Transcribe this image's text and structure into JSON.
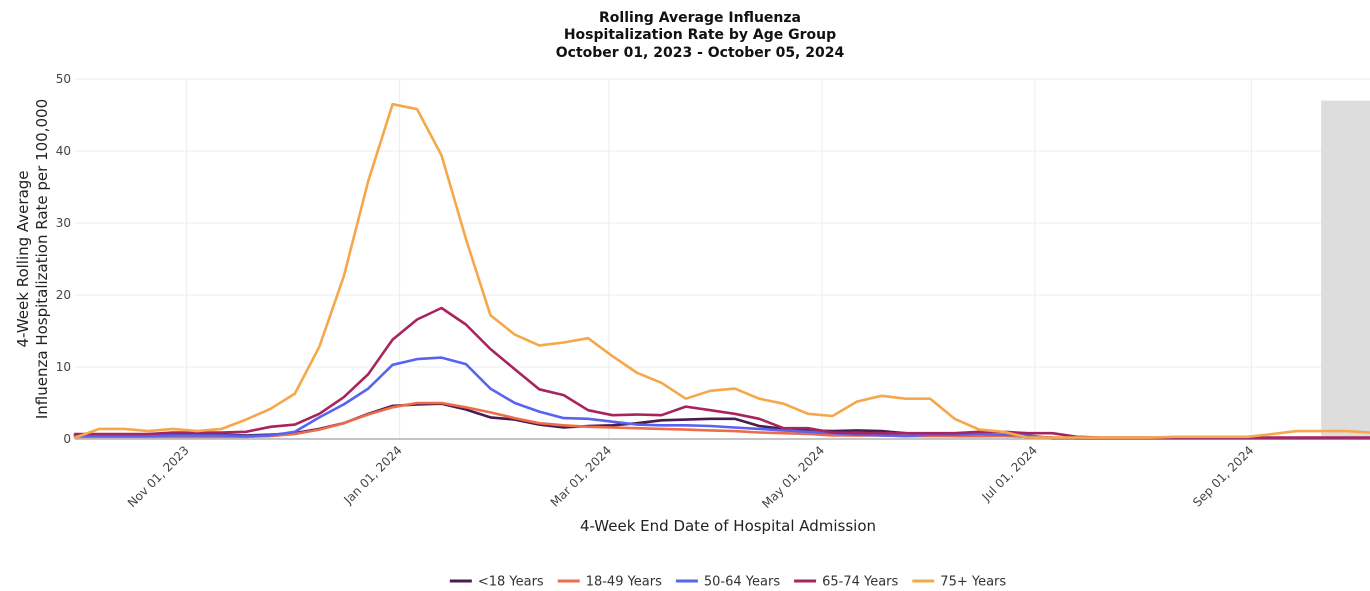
{
  "chart_data": {
    "type": "line",
    "title": [
      "Rolling Average Influenza",
      "Hospitalization Rate by Age Group",
      "October 01, 2023 - October 05, 2024"
    ],
    "xlabel": "4-Week End Date of Hospital Admission",
    "ylabel": [
      "4-Week Rolling Average",
      "Influenza Hospitalization Rate per 100,000"
    ],
    "xlim": [
      "2023-09-30",
      "2024-10-05"
    ],
    "ylim": [
      0,
      50
    ],
    "y_ticks": [
      0,
      10,
      20,
      30,
      40,
      50
    ],
    "x_ticks": [
      {
        "date": "2023-11-01",
        "label": "Nov 01, 2023"
      },
      {
        "date": "2024-01-01",
        "label": "Jan 01, 2024"
      },
      {
        "date": "2024-03-01",
        "label": "Mar 01, 2024"
      },
      {
        "date": "2024-05-01",
        "label": "May 01, 2024"
      },
      {
        "date": "2024-07-01",
        "label": "Jul 01, 2024"
      },
      {
        "date": "2024-09-01",
        "label": "Sep 01, 2024"
      }
    ],
    "grid": true,
    "legend_position": "bottom",
    "shaded_region": {
      "start": "2024-09-21",
      "end": "2024-10-05",
      "top": 47,
      "color": "#dddddd"
    },
    "series": [
      {
        "name": "<18 Years",
        "color": "#4b1d4f",
        "points": [
          [
            "2023-09-30",
            0.5
          ],
          [
            "2023-10-07",
            0.5
          ],
          [
            "2023-10-14",
            0.5
          ],
          [
            "2023-10-21",
            0.5
          ],
          [
            "2023-10-28",
            0.6
          ],
          [
            "2023-11-04",
            0.6
          ],
          [
            "2023-11-11",
            0.6
          ],
          [
            "2023-11-18",
            0.5
          ],
          [
            "2023-11-25",
            0.6
          ],
          [
            "2023-12-02",
            0.8
          ],
          [
            "2023-12-09",
            1.4
          ],
          [
            "2023-12-16",
            2.2
          ],
          [
            "2023-12-23",
            3.5
          ],
          [
            "2023-12-30",
            4.6
          ],
          [
            "2024-01-06",
            4.8
          ],
          [
            "2024-01-13",
            4.9
          ],
          [
            "2024-01-20",
            4.1
          ],
          [
            "2024-01-27",
            3.0
          ],
          [
            "2024-02-03",
            2.7
          ],
          [
            "2024-02-10",
            2.0
          ],
          [
            "2024-02-17",
            1.6
          ],
          [
            "2024-02-24",
            1.8
          ],
          [
            "2024-03-02",
            1.9
          ],
          [
            "2024-03-09",
            2.2
          ],
          [
            "2024-03-16",
            2.6
          ],
          [
            "2024-03-23",
            2.7
          ],
          [
            "2024-03-30",
            2.8
          ],
          [
            "2024-04-06",
            2.8
          ],
          [
            "2024-04-13",
            1.8
          ],
          [
            "2024-04-20",
            1.4
          ],
          [
            "2024-04-27",
            1.2
          ],
          [
            "2024-05-04",
            1.1
          ],
          [
            "2024-05-11",
            1.2
          ],
          [
            "2024-05-18",
            1.1
          ],
          [
            "2024-05-25",
            0.8
          ],
          [
            "2024-06-01",
            0.6
          ],
          [
            "2024-06-08",
            0.4
          ],
          [
            "2024-06-15",
            0.4
          ],
          [
            "2024-06-22",
            0.5
          ],
          [
            "2024-06-29",
            0.3
          ],
          [
            "2024-07-06",
            0.2
          ],
          [
            "2024-07-13",
            0.1
          ],
          [
            "2024-07-20",
            0.1
          ],
          [
            "2024-07-27",
            0.1
          ],
          [
            "2024-08-03",
            0.1
          ],
          [
            "2024-08-10",
            0.1
          ],
          [
            "2024-08-17",
            0.1
          ],
          [
            "2024-08-24",
            0.1
          ],
          [
            "2024-08-31",
            0.1
          ],
          [
            "2024-09-07",
            0.1
          ],
          [
            "2024-09-14",
            0.1
          ],
          [
            "2024-09-21",
            0.1
          ],
          [
            "2024-09-28",
            0.1
          ],
          [
            "2024-10-05",
            0.1
          ]
        ]
      },
      {
        "name": "18-49 Years",
        "color": "#ef6c4b",
        "points": [
          [
            "2023-09-30",
            0.3
          ],
          [
            "2023-10-07",
            0.3
          ],
          [
            "2023-10-14",
            0.3
          ],
          [
            "2023-10-21",
            0.3
          ],
          [
            "2023-10-28",
            0.3
          ],
          [
            "2023-11-04",
            0.3
          ],
          [
            "2023-11-11",
            0.3
          ],
          [
            "2023-11-18",
            0.3
          ],
          [
            "2023-11-25",
            0.4
          ],
          [
            "2023-12-02",
            0.7
          ],
          [
            "2023-12-09",
            1.3
          ],
          [
            "2023-12-16",
            2.2
          ],
          [
            "2023-12-23",
            3.4
          ],
          [
            "2023-12-30",
            4.4
          ],
          [
            "2024-01-06",
            5.0
          ],
          [
            "2024-01-13",
            5.0
          ],
          [
            "2024-01-20",
            4.4
          ],
          [
            "2024-01-27",
            3.7
          ],
          [
            "2024-02-03",
            2.9
          ],
          [
            "2024-02-10",
            2.2
          ],
          [
            "2024-02-17",
            1.9
          ],
          [
            "2024-02-24",
            1.7
          ],
          [
            "2024-03-02",
            1.6
          ],
          [
            "2024-03-09",
            1.5
          ],
          [
            "2024-03-16",
            1.4
          ],
          [
            "2024-03-23",
            1.3
          ],
          [
            "2024-03-30",
            1.2
          ],
          [
            "2024-04-06",
            1.1
          ],
          [
            "2024-04-13",
            0.9
          ],
          [
            "2024-04-20",
            0.8
          ],
          [
            "2024-04-27",
            0.7
          ],
          [
            "2024-05-04",
            0.5
          ],
          [
            "2024-05-11",
            0.5
          ],
          [
            "2024-05-18",
            0.5
          ],
          [
            "2024-05-25",
            0.4
          ],
          [
            "2024-06-01",
            0.4
          ],
          [
            "2024-06-08",
            0.4
          ],
          [
            "2024-06-15",
            0.4
          ],
          [
            "2024-06-22",
            0.4
          ],
          [
            "2024-06-29",
            0.3
          ],
          [
            "2024-07-06",
            0.1
          ],
          [
            "2024-07-13",
            0.1
          ],
          [
            "2024-07-20",
            0.1
          ],
          [
            "2024-07-27",
            0.1
          ],
          [
            "2024-08-03",
            0.1
          ],
          [
            "2024-08-10",
            0.1
          ],
          [
            "2024-08-17",
            0.1
          ],
          [
            "2024-08-24",
            0.1
          ],
          [
            "2024-08-31",
            0.1
          ],
          [
            "2024-09-07",
            0.1
          ],
          [
            "2024-09-14",
            0.1
          ],
          [
            "2024-09-21",
            0.1
          ],
          [
            "2024-09-28",
            0.1
          ],
          [
            "2024-10-05",
            0.1
          ]
        ]
      },
      {
        "name": "50-64 Years",
        "color": "#5864f0",
        "points": [
          [
            "2023-09-30",
            0.4
          ],
          [
            "2023-10-07",
            0.4
          ],
          [
            "2023-10-14",
            0.4
          ],
          [
            "2023-10-21",
            0.4
          ],
          [
            "2023-10-28",
            0.5
          ],
          [
            "2023-11-04",
            0.5
          ],
          [
            "2023-11-11",
            0.5
          ],
          [
            "2023-11-18",
            0.4
          ],
          [
            "2023-11-25",
            0.5
          ],
          [
            "2023-12-02",
            1.0
          ],
          [
            "2023-12-09",
            3.0
          ],
          [
            "2023-12-16",
            4.8
          ],
          [
            "2023-12-23",
            7.0
          ],
          [
            "2023-12-30",
            10.3
          ],
          [
            "2024-01-06",
            11.1
          ],
          [
            "2024-01-13",
            11.3
          ],
          [
            "2024-01-20",
            10.4
          ],
          [
            "2024-01-27",
            7.0
          ],
          [
            "2024-02-03",
            5.0
          ],
          [
            "2024-02-10",
            3.8
          ],
          [
            "2024-02-17",
            2.9
          ],
          [
            "2024-02-24",
            2.8
          ],
          [
            "2024-03-02",
            2.4
          ],
          [
            "2024-03-09",
            2.0
          ],
          [
            "2024-03-16",
            1.9
          ],
          [
            "2024-03-23",
            1.9
          ],
          [
            "2024-03-30",
            1.8
          ],
          [
            "2024-04-06",
            1.6
          ],
          [
            "2024-04-13",
            1.4
          ],
          [
            "2024-04-20",
            1.2
          ],
          [
            "2024-04-27",
            1.0
          ],
          [
            "2024-05-04",
            0.8
          ],
          [
            "2024-05-11",
            0.6
          ],
          [
            "2024-05-18",
            0.5
          ],
          [
            "2024-05-25",
            0.4
          ],
          [
            "2024-06-01",
            0.6
          ],
          [
            "2024-06-08",
            0.6
          ],
          [
            "2024-06-15",
            0.7
          ],
          [
            "2024-06-22",
            0.6
          ],
          [
            "2024-06-29",
            0.5
          ],
          [
            "2024-07-06",
            0.1
          ],
          [
            "2024-07-13",
            0.1
          ],
          [
            "2024-07-20",
            0.1
          ],
          [
            "2024-07-27",
            0.1
          ],
          [
            "2024-08-03",
            0.1
          ],
          [
            "2024-08-10",
            0.1
          ],
          [
            "2024-08-17",
            0.1
          ],
          [
            "2024-08-24",
            0.1
          ],
          [
            "2024-08-31",
            0.1
          ],
          [
            "2024-09-07",
            0.1
          ],
          [
            "2024-09-14",
            0.1
          ],
          [
            "2024-09-21",
            0.1
          ],
          [
            "2024-09-28",
            0.1
          ],
          [
            "2024-10-05",
            0.1
          ]
        ]
      },
      {
        "name": "65-74 Years",
        "color": "#a8245c",
        "points": [
          [
            "2023-09-30",
            0.7
          ],
          [
            "2023-10-07",
            0.7
          ],
          [
            "2023-10-14",
            0.7
          ],
          [
            "2023-10-21",
            0.7
          ],
          [
            "2023-10-28",
            0.9
          ],
          [
            "2023-11-04",
            0.9
          ],
          [
            "2023-11-11",
            0.9
          ],
          [
            "2023-11-18",
            1.0
          ],
          [
            "2023-11-25",
            1.7
          ],
          [
            "2023-12-02",
            2.0
          ],
          [
            "2023-12-09",
            3.5
          ],
          [
            "2023-12-16",
            5.8
          ],
          [
            "2023-12-23",
            9.0
          ],
          [
            "2023-12-30",
            13.8
          ],
          [
            "2024-01-06",
            16.6
          ],
          [
            "2024-01-13",
            18.2
          ],
          [
            "2024-01-20",
            15.9
          ],
          [
            "2024-01-27",
            12.5
          ],
          [
            "2024-02-03",
            9.7
          ],
          [
            "2024-02-10",
            6.9
          ],
          [
            "2024-02-17",
            6.1
          ],
          [
            "2024-02-24",
            4.0
          ],
          [
            "2024-03-02",
            3.3
          ],
          [
            "2024-03-09",
            3.4
          ],
          [
            "2024-03-16",
            3.3
          ],
          [
            "2024-03-23",
            4.5
          ],
          [
            "2024-03-30",
            4.0
          ],
          [
            "2024-04-06",
            3.5
          ],
          [
            "2024-04-13",
            2.8
          ],
          [
            "2024-04-20",
            1.5
          ],
          [
            "2024-04-27",
            1.5
          ],
          [
            "2024-05-04",
            0.9
          ],
          [
            "2024-05-11",
            0.8
          ],
          [
            "2024-05-18",
            0.8
          ],
          [
            "2024-05-25",
            0.8
          ],
          [
            "2024-06-01",
            0.8
          ],
          [
            "2024-06-08",
            0.8
          ],
          [
            "2024-06-15",
            1.0
          ],
          [
            "2024-06-22",
            1.0
          ],
          [
            "2024-06-29",
            0.8
          ],
          [
            "2024-07-06",
            0.8
          ],
          [
            "2024-07-13",
            0.3
          ],
          [
            "2024-07-20",
            0.2
          ],
          [
            "2024-07-27",
            0.2
          ],
          [
            "2024-08-03",
            0.2
          ],
          [
            "2024-08-10",
            0.2
          ],
          [
            "2024-08-17",
            0.2
          ],
          [
            "2024-08-24",
            0.2
          ],
          [
            "2024-08-31",
            0.2
          ],
          [
            "2024-09-07",
            0.2
          ],
          [
            "2024-09-14",
            0.2
          ],
          [
            "2024-09-21",
            0.2
          ],
          [
            "2024-09-28",
            0.2
          ],
          [
            "2024-10-05",
            0.2
          ]
        ]
      },
      {
        "name": "75+ Years",
        "color": "#f6a74a",
        "points": [
          [
            "2023-09-30",
            0.2
          ],
          [
            "2023-10-07",
            1.4
          ],
          [
            "2023-10-14",
            1.4
          ],
          [
            "2023-10-21",
            1.1
          ],
          [
            "2023-10-28",
            1.4
          ],
          [
            "2023-11-04",
            1.1
          ],
          [
            "2023-11-11",
            1.4
          ],
          [
            "2023-11-18",
            2.7
          ],
          [
            "2023-11-25",
            4.2
          ],
          [
            "2023-12-02",
            6.3
          ],
          [
            "2023-12-09",
            12.8
          ],
          [
            "2023-12-16",
            22.6
          ],
          [
            "2023-12-23",
            35.8
          ],
          [
            "2023-12-30",
            46.5
          ],
          [
            "2024-01-06",
            45.8
          ],
          [
            "2024-01-13",
            39.4
          ],
          [
            "2024-01-20",
            27.8
          ],
          [
            "2024-01-27",
            17.2
          ],
          [
            "2024-02-03",
            14.5
          ],
          [
            "2024-02-10",
            13.0
          ],
          [
            "2024-02-17",
            13.4
          ],
          [
            "2024-02-24",
            14.0
          ],
          [
            "2024-03-02",
            11.5
          ],
          [
            "2024-03-09",
            9.2
          ],
          [
            "2024-03-16",
            7.8
          ],
          [
            "2024-03-23",
            5.6
          ],
          [
            "2024-03-30",
            6.7
          ],
          [
            "2024-04-06",
            7.0
          ],
          [
            "2024-04-13",
            5.6
          ],
          [
            "2024-04-20",
            4.9
          ],
          [
            "2024-04-27",
            3.5
          ],
          [
            "2024-05-04",
            3.2
          ],
          [
            "2024-05-11",
            5.2
          ],
          [
            "2024-05-18",
            6.0
          ],
          [
            "2024-05-25",
            5.6
          ],
          [
            "2024-06-01",
            5.6
          ],
          [
            "2024-06-08",
            2.8
          ],
          [
            "2024-06-15",
            1.3
          ],
          [
            "2024-06-22",
            1.0
          ],
          [
            "2024-06-29",
            0.2
          ],
          [
            "2024-07-06",
            0.2
          ],
          [
            "2024-07-13",
            0.2
          ],
          [
            "2024-07-20",
            0.2
          ],
          [
            "2024-07-27",
            0.2
          ],
          [
            "2024-08-03",
            0.2
          ],
          [
            "2024-08-10",
            0.3
          ],
          [
            "2024-08-17",
            0.3
          ],
          [
            "2024-08-24",
            0.3
          ],
          [
            "2024-08-31",
            0.3
          ],
          [
            "2024-09-07",
            0.7
          ],
          [
            "2024-09-14",
            1.1
          ],
          [
            "2024-09-21",
            1.1
          ],
          [
            "2024-09-28",
            1.1
          ],
          [
            "2024-10-05",
            0.9
          ]
        ]
      }
    ]
  }
}
